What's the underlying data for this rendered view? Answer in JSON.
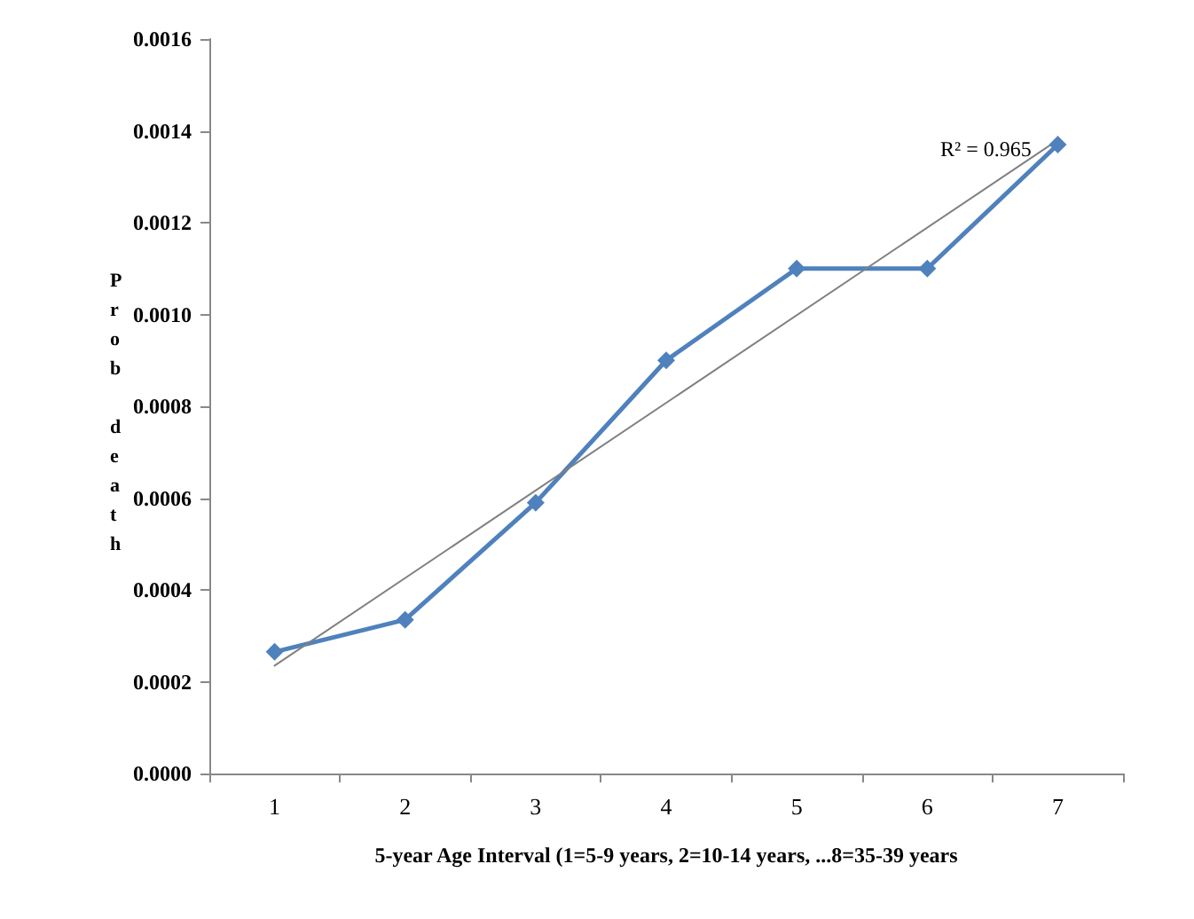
{
  "chart_data": {
    "type": "line",
    "xlabel": "5-year Age Interval (1=5-9 years, 2=10-14 years, ...8=35-39 years",
    "ylabel": "Prob death",
    "categories": [
      "1",
      "2",
      "3",
      "4",
      "5",
      "6",
      "7"
    ],
    "series": [
      {
        "color": "#4f81bd",
        "values": [
          0.000265,
          0.000335,
          0.00059,
          0.0009,
          0.0011,
          0.0011,
          0.00137
        ],
        "marker": "diamond",
        "line_style": "solid"
      },
      {
        "type": "line",
        "color": "#808080",
        "x": [
          "1",
          "7"
        ],
        "values": [
          0.000235,
          0.00138
        ],
        "marker": "none",
        "line_style": "solid"
      }
    ],
    "ylim": [
      0,
      0.0016
    ],
    "yticks": [
      {
        "value": 0,
        "label": "0.0000"
      },
      {
        "value": 0.0002,
        "label": "0.0002"
      },
      {
        "value": 0.0004,
        "label": "0.0004"
      },
      {
        "value": 0.0006,
        "label": "0.0006"
      },
      {
        "value": 0.0008,
        "label": "0.0008"
      },
      {
        "value": 0.001,
        "label": "0.0010"
      },
      {
        "value": 0.0012,
        "label": "0.0012"
      },
      {
        "value": 0.0014,
        "label": "0.0014"
      },
      {
        "value": 0.0016,
        "label": "0.0016"
      }
    ],
    "annotations": [
      "R² = 0.965"
    ],
    "grid": false
  }
}
